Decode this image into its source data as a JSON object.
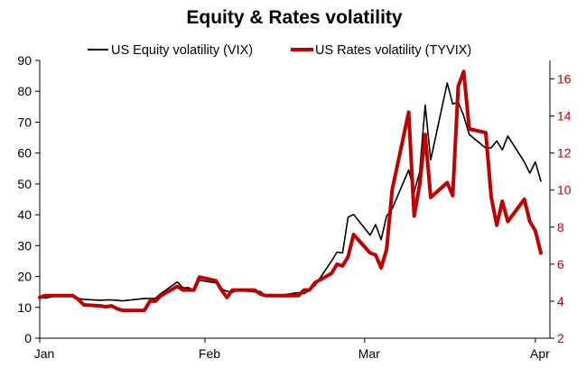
{
  "chart_data": {
    "type": "line",
    "title": "Equity & Rates volatility",
    "x_ticks": [
      "Jan",
      "Feb",
      "Mar",
      "Apr"
    ],
    "y_left": {
      "lim": [
        0,
        90
      ],
      "ticks": [
        0,
        10,
        20,
        30,
        40,
        50,
        60,
        70,
        80,
        90
      ]
    },
    "y_right": {
      "lim": [
        2,
        17
      ],
      "ticks": [
        2,
        4,
        6,
        8,
        10,
        12,
        14,
        16
      ],
      "color": "#c00000"
    },
    "grid": false,
    "legend_position": "top",
    "series": [
      {
        "name": "US Equity volatility (VIX)",
        "axis": "left",
        "color": "#000000",
        "points": [
          [
            "2020-01-02",
            13.5
          ],
          [
            "2020-01-03",
            13.0
          ],
          [
            "2020-01-06",
            14.0
          ],
          [
            "2020-01-07",
            13.8
          ],
          [
            "2020-01-08",
            13.5
          ],
          [
            "2020-01-09",
            12.9
          ],
          [
            "2020-01-10",
            12.6
          ],
          [
            "2020-01-13",
            12.3
          ],
          [
            "2020-01-14",
            12.4
          ],
          [
            "2020-01-15",
            12.4
          ],
          [
            "2020-01-16",
            12.3
          ],
          [
            "2020-01-17",
            12.1
          ],
          [
            "2020-01-21",
            12.9
          ],
          [
            "2020-01-22",
            12.9
          ],
          [
            "2020-01-23",
            12.9
          ],
          [
            "2020-01-24",
            14.5
          ],
          [
            "2020-01-27",
            18.2
          ],
          [
            "2020-01-28",
            16.3
          ],
          [
            "2020-01-29",
            16.4
          ],
          [
            "2020-01-30",
            15.5
          ],
          [
            "2020-01-31",
            18.8
          ],
          [
            "2020-02-03",
            17.9
          ],
          [
            "2020-02-04",
            16.0
          ],
          [
            "2020-02-05",
            15.2
          ],
          [
            "2020-02-06",
            14.9
          ],
          [
            "2020-02-07",
            15.5
          ],
          [
            "2020-02-10",
            15.0
          ],
          [
            "2020-02-11",
            15.2
          ],
          [
            "2020-02-12",
            13.7
          ],
          [
            "2020-02-13",
            14.2
          ],
          [
            "2020-02-14",
            13.7
          ],
          [
            "2020-02-18",
            14.8
          ],
          [
            "2020-02-19",
            14.4
          ],
          [
            "2020-02-20",
            15.6
          ],
          [
            "2020-02-21",
            17.1
          ],
          [
            "2020-02-24",
            25.0
          ],
          [
            "2020-02-25",
            27.9
          ],
          [
            "2020-02-26",
            27.6
          ],
          [
            "2020-02-27",
            39.2
          ],
          [
            "2020-02-28",
            40.1
          ],
          [
            "2020-03-02",
            33.4
          ],
          [
            "2020-03-03",
            36.8
          ],
          [
            "2020-03-04",
            31.9
          ],
          [
            "2020-03-05",
            39.6
          ],
          [
            "2020-03-06",
            41.9
          ],
          [
            "2020-03-09",
            54.5
          ],
          [
            "2020-03-10",
            47.3
          ],
          [
            "2020-03-11",
            53.9
          ],
          [
            "2020-03-12",
            75.5
          ],
          [
            "2020-03-13",
            57.8
          ],
          [
            "2020-03-16",
            82.7
          ],
          [
            "2020-03-17",
            75.9
          ],
          [
            "2020-03-18",
            76.5
          ],
          [
            "2020-03-19",
            72.0
          ],
          [
            "2020-03-20",
            66.0
          ],
          [
            "2020-03-23",
            61.6
          ],
          [
            "2020-03-24",
            61.7
          ],
          [
            "2020-03-25",
            63.9
          ],
          [
            "2020-03-26",
            61.0
          ],
          [
            "2020-03-27",
            65.5
          ],
          [
            "2020-03-30",
            57.1
          ],
          [
            "2020-03-31",
            53.5
          ],
          [
            "2020-04-01",
            57.1
          ],
          [
            "2020-04-02",
            50.9
          ]
        ]
      },
      {
        "name": "US Rates volatility (TYVIX)",
        "axis": "right",
        "color": "#c00000",
        "points": [
          [
            "2020-01-02",
            4.2
          ],
          [
            "2020-01-03",
            4.3
          ],
          [
            "2020-01-06",
            4.3
          ],
          [
            "2020-01-07",
            4.3
          ],
          [
            "2020-01-08",
            4.3
          ],
          [
            "2020-01-09",
            4.1
          ],
          [
            "2020-01-10",
            3.8
          ],
          [
            "2020-01-13",
            3.75
          ],
          [
            "2020-01-14",
            3.7
          ],
          [
            "2020-01-15",
            3.75
          ],
          [
            "2020-01-16",
            3.6
          ],
          [
            "2020-01-17",
            3.5
          ],
          [
            "2020-01-21",
            3.5
          ],
          [
            "2020-01-22",
            4.0
          ],
          [
            "2020-01-23",
            4.0
          ],
          [
            "2020-01-24",
            4.3
          ],
          [
            "2020-01-27",
            4.8
          ],
          [
            "2020-01-28",
            4.6
          ],
          [
            "2020-01-29",
            4.6
          ],
          [
            "2020-01-30",
            4.6
          ],
          [
            "2020-01-31",
            5.3
          ],
          [
            "2020-02-03",
            5.1
          ],
          [
            "2020-02-04",
            4.6
          ],
          [
            "2020-02-05",
            4.2
          ],
          [
            "2020-02-06",
            4.6
          ],
          [
            "2020-02-07",
            4.6
          ],
          [
            "2020-02-10",
            4.6
          ],
          [
            "2020-02-11",
            4.4
          ],
          [
            "2020-02-12",
            4.3
          ],
          [
            "2020-02-13",
            4.3
          ],
          [
            "2020-02-14",
            4.3
          ],
          [
            "2020-02-18",
            4.3
          ],
          [
            "2020-02-19",
            4.6
          ],
          [
            "2020-02-20",
            4.6
          ],
          [
            "2020-02-21",
            5.0
          ],
          [
            "2020-02-24",
            5.5
          ],
          [
            "2020-02-25",
            6.0
          ],
          [
            "2020-02-26",
            5.9
          ],
          [
            "2020-02-27",
            6.4
          ],
          [
            "2020-02-28",
            7.6
          ],
          [
            "2020-03-02",
            6.6
          ],
          [
            "2020-03-03",
            6.5
          ],
          [
            "2020-03-04",
            5.8
          ],
          [
            "2020-03-05",
            6.8
          ],
          [
            "2020-03-06",
            10.0
          ],
          [
            "2020-03-09",
            14.2
          ],
          [
            "2020-03-10",
            8.6
          ],
          [
            "2020-03-11",
            10.3
          ],
          [
            "2020-03-12",
            13.0
          ],
          [
            "2020-03-13",
            9.6
          ],
          [
            "2020-03-16",
            10.4
          ],
          [
            "2020-03-17",
            9.7
          ],
          [
            "2020-03-18",
            15.6
          ],
          [
            "2020-03-19",
            16.4
          ],
          [
            "2020-03-20",
            13.3
          ],
          [
            "2020-03-23",
            13.1
          ],
          [
            "2020-03-24",
            9.6
          ],
          [
            "2020-03-25",
            8.1
          ],
          [
            "2020-03-26",
            9.4
          ],
          [
            "2020-03-27",
            8.3
          ],
          [
            "2020-03-30",
            9.5
          ],
          [
            "2020-03-31",
            8.3
          ],
          [
            "2020-04-01",
            7.8
          ],
          [
            "2020-04-02",
            6.6
          ]
        ]
      }
    ]
  }
}
